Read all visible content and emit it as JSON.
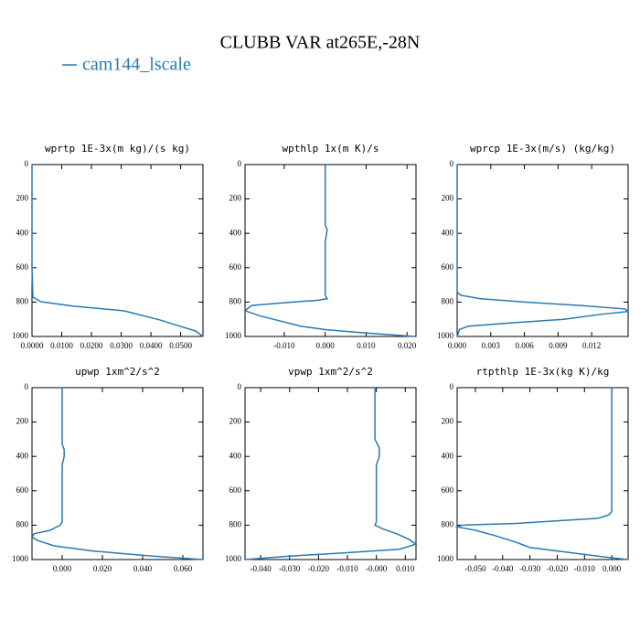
{
  "title": "CLUBB VAR at265E,-28N",
  "legend": {
    "name": "cam144_lscale",
    "color": "#2a79b4"
  },
  "chart_data": [
    {
      "type": "line",
      "title": "wprtp  1E-3x(m kg)/(s kg)",
      "y": [
        0,
        300,
        600,
        771,
        798,
        824,
        851,
        904,
        947,
        968,
        1000
      ],
      "values": [
        0,
        0,
        0,
        0.0003,
        0.003,
        0.014,
        0.031,
        0.043,
        0.051,
        0.055,
        0.0575
      ],
      "xlim": [
        0,
        0.0575
      ],
      "xticks": [
        {
          "value": 0,
          "label": "0.0000"
        },
        {
          "value": 0.01,
          "label": "0.0100"
        },
        {
          "value": 0.02,
          "label": "0.0200"
        },
        {
          "value": 0.03,
          "label": "0.0300"
        },
        {
          "value": 0.04,
          "label": "0.0400"
        },
        {
          "value": 0.05,
          "label": "0.0500"
        }
      ],
      "ylim": [
        0,
        1000
      ],
      "yticks": [
        0,
        200,
        400,
        600,
        800,
        1000
      ],
      "y_inverted": true
    },
    {
      "type": "line",
      "title": "wpthlp  1x(m K)/s",
      "y": [
        0,
        350,
        380,
        450,
        760,
        780,
        790,
        800,
        820,
        850,
        880,
        910,
        940,
        960,
        980,
        1000
      ],
      "values": [
        0,
        0,
        0.0005,
        0,
        0,
        0.0005,
        -0.002,
        -0.008,
        -0.018,
        -0.0196,
        -0.016,
        -0.011,
        -0.006,
        0,
        0.01,
        0.022
      ],
      "xlim": [
        -0.0196,
        0.0222
      ],
      "xticks": [
        {
          "value": -0.01,
          "label": "-0.010"
        },
        {
          "value": 0,
          "label": "0.000"
        },
        {
          "value": 0.01,
          "label": "0.010"
        },
        {
          "value": 0.02,
          "label": "0.020"
        }
      ],
      "ylim": [
        0,
        1000
      ],
      "yticks": [
        0,
        200,
        400,
        600,
        800,
        1000
      ],
      "y_inverted": true
    },
    {
      "type": "line",
      "title": "wprcp  1E-3x(m/s) (kg/kg)",
      "y": [
        0,
        740,
        760,
        780,
        800,
        820,
        840,
        855,
        870,
        900,
        920,
        940,
        960,
        1000
      ],
      "values": [
        0,
        0,
        0.0003,
        0.002,
        0.006,
        0.011,
        0.015,
        0.0152,
        0.013,
        0.0095,
        0.005,
        0.001,
        0.0002,
        0
      ],
      "xlim": [
        0,
        0.01525
      ],
      "xticks": [
        {
          "value": 0,
          "label": "0.000"
        },
        {
          "value": 0.003,
          "label": "0.003"
        },
        {
          "value": 0.006,
          "label": "0.006"
        },
        {
          "value": 0.009,
          "label": "0.009"
        },
        {
          "value": 0.012,
          "label": "0.012"
        }
      ],
      "ylim": [
        0,
        1000
      ],
      "yticks": [
        0,
        200,
        400,
        600,
        800,
        1000
      ],
      "y_inverted": true
    },
    {
      "type": "line",
      "title": "upwp  1xm^2/s^2",
      "y": [
        0,
        330,
        360,
        400,
        450,
        780,
        800,
        830,
        850,
        870,
        890,
        920,
        950,
        980,
        1000
      ],
      "values": [
        0,
        0,
        0.001,
        0.001,
        0,
        0,
        -0.001,
        -0.006,
        -0.014,
        -0.015,
        -0.012,
        -0.004,
        0.015,
        0.045,
        0.07
      ],
      "xlim": [
        -0.015,
        0.07
      ],
      "xticks": [
        {
          "value": 0,
          "label": "0.000"
        },
        {
          "value": 0.02,
          "label": "0.020"
        },
        {
          "value": 0.04,
          "label": "0.040"
        },
        {
          "value": 0.06,
          "label": "0.060"
        }
      ],
      "ylim": [
        0,
        1000
      ],
      "yticks": [
        0,
        200,
        400,
        600,
        800,
        1000
      ],
      "y_inverted": true
    },
    {
      "type": "line",
      "title": "vpwp  1xm^2/s^2",
      "y": [
        0,
        300,
        350,
        400,
        450,
        780,
        800,
        820,
        850,
        880,
        910,
        940,
        960,
        980,
        1000
      ],
      "values": [
        -0.0005,
        -0.0005,
        0.001,
        0.001,
        0,
        0,
        -0.0005,
        0.002,
        0.007,
        0.011,
        0.0137,
        0.008,
        -0.01,
        -0.03,
        -0.0454
      ],
      "xlim": [
        -0.0454,
        0.0137
      ],
      "xticks": [
        {
          "value": -0.04,
          "label": "-0.040"
        },
        {
          "value": -0.03,
          "label": "-0.030"
        },
        {
          "value": -0.02,
          "label": "-0.020"
        },
        {
          "value": -0.01,
          "label": "-0.010"
        },
        {
          "value": 0,
          "label": "-0.000"
        },
        {
          "value": 0.01,
          "label": "0.010"
        }
      ],
      "ylim": [
        0,
        1000
      ],
      "yticks": [
        0,
        200,
        400,
        600,
        800,
        1000
      ],
      "y_inverted": true
    },
    {
      "type": "line",
      "title": "rtpthlp  1E-3x(kg K)/kg",
      "y": [
        0,
        720,
        740,
        760,
        790,
        800,
        810,
        830,
        860,
        900,
        930,
        960,
        990,
        1000
      ],
      "values": [
        0,
        0,
        -0.001,
        -0.005,
        -0.035,
        -0.055,
        -0.0567,
        -0.05,
        -0.043,
        -0.035,
        -0.03,
        -0.015,
        0,
        0.006
      ],
      "xlim": [
        -0.0567,
        0.006
      ],
      "xticks": [
        {
          "value": -0.05,
          "label": "-0.050"
        },
        {
          "value": -0.04,
          "label": "-0.040"
        },
        {
          "value": -0.03,
          "label": "-0.030"
        },
        {
          "value": -0.02,
          "label": "-0.020"
        },
        {
          "value": -0.01,
          "label": "-0.010"
        },
        {
          "value": 0,
          "label": "0.000"
        }
      ],
      "ylim": [
        0,
        1000
      ],
      "yticks": [
        0,
        200,
        400,
        600,
        800,
        1000
      ],
      "y_inverted": true
    }
  ]
}
